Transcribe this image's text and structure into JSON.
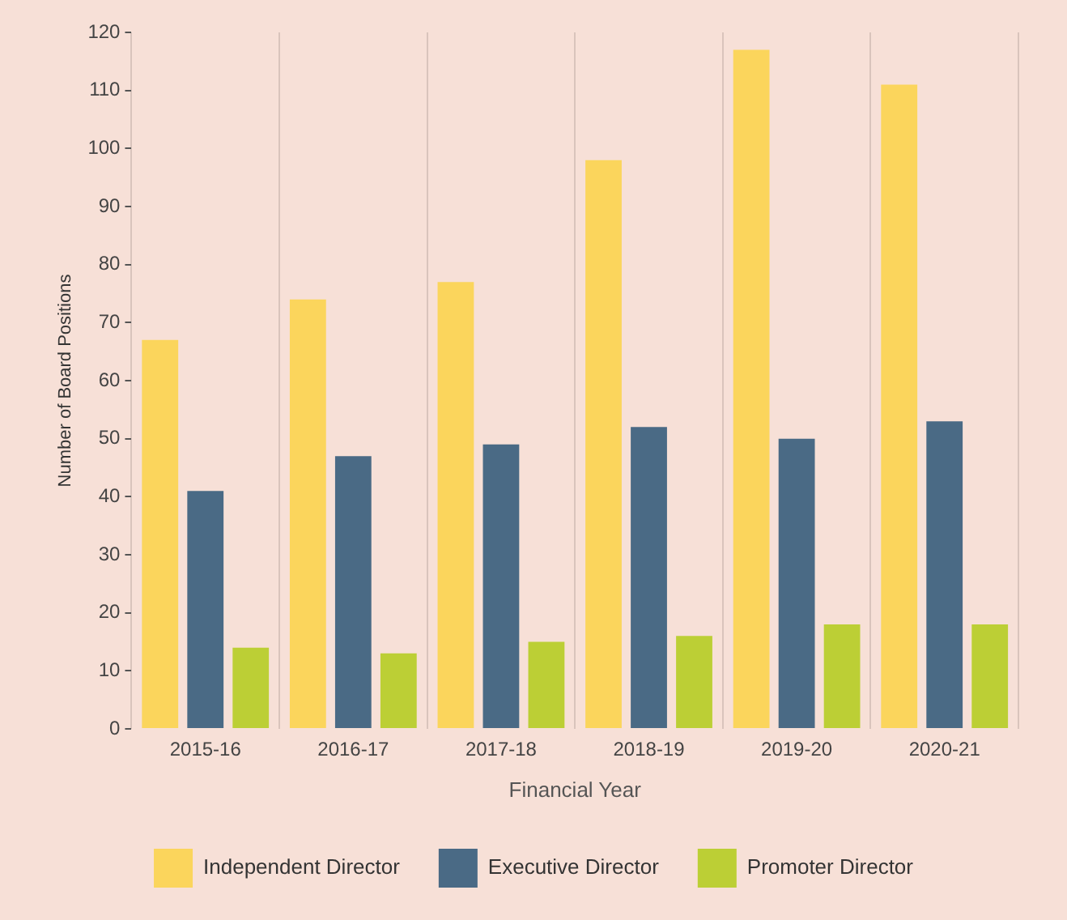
{
  "chart_data": {
    "type": "bar",
    "xlabel": "Financial Year",
    "ylabel": "Number of Board Positions",
    "categories": [
      "2015-16",
      "2016-17",
      "2017-18",
      "2018-19",
      "2019-20",
      "2020-21"
    ],
    "series": [
      {
        "name": "Independent Director",
        "color": "#fbd55c",
        "values": [
          67,
          74,
          77,
          98,
          117,
          111
        ]
      },
      {
        "name": "Executive Director",
        "color": "#4a6a85",
        "values": [
          41,
          47,
          49,
          52,
          50,
          53
        ]
      },
      {
        "name": "Promoter Director",
        "color": "#bccf35",
        "values": [
          14,
          13,
          15,
          16,
          18,
          18
        ]
      }
    ],
    "ylim": [
      0,
      120
    ],
    "yticks": [
      0,
      10,
      20,
      30,
      40,
      50,
      60,
      70,
      80,
      90,
      100,
      110,
      120
    ],
    "grid": "x",
    "legend": "bottom"
  }
}
